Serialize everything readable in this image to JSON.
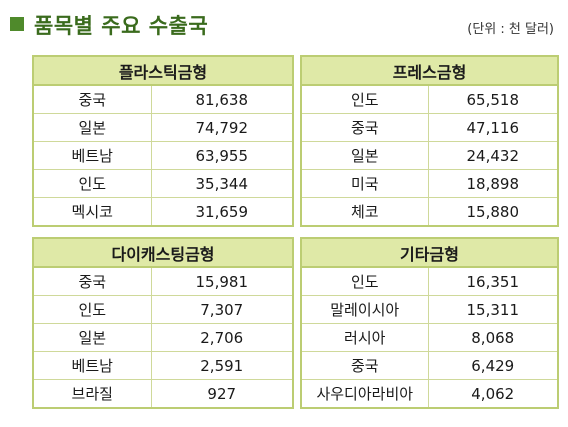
{
  "header": {
    "title": "품목별 주요 수출국",
    "unit": "(단위 : 천 달러)"
  },
  "tables": [
    {
      "title": "플라스틱금형",
      "rows": [
        {
          "country": "중국",
          "value": "81,638"
        },
        {
          "country": "일본",
          "value": "74,792"
        },
        {
          "country": "베트남",
          "value": "63,955"
        },
        {
          "country": "인도",
          "value": "35,344"
        },
        {
          "country": "멕시코",
          "value": "31,659"
        }
      ]
    },
    {
      "title": "프레스금형",
      "rows": [
        {
          "country": "인도",
          "value": "65,518"
        },
        {
          "country": "중국",
          "value": "47,116"
        },
        {
          "country": "일본",
          "value": "24,432"
        },
        {
          "country": "미국",
          "value": "18,898"
        },
        {
          "country": "체코",
          "value": "15,880"
        }
      ]
    },
    {
      "title": "다이캐스팅금형",
      "rows": [
        {
          "country": "중국",
          "value": "15,981"
        },
        {
          "country": "인도",
          "value": "7,307"
        },
        {
          "country": "일본",
          "value": "2,706"
        },
        {
          "country": "베트남",
          "value": "2,591"
        },
        {
          "country": "브라질",
          "value": "927"
        }
      ]
    },
    {
      "title": "기타금형",
      "rows": [
        {
          "country": "인도",
          "value": "16,351"
        },
        {
          "country": "말레이시아",
          "value": "15,311"
        },
        {
          "country": "러시아",
          "value": "8,068"
        },
        {
          "country": "중국",
          "value": "6,429"
        },
        {
          "country": "사우디아라비아",
          "value": "4,062"
        }
      ]
    }
  ]
}
